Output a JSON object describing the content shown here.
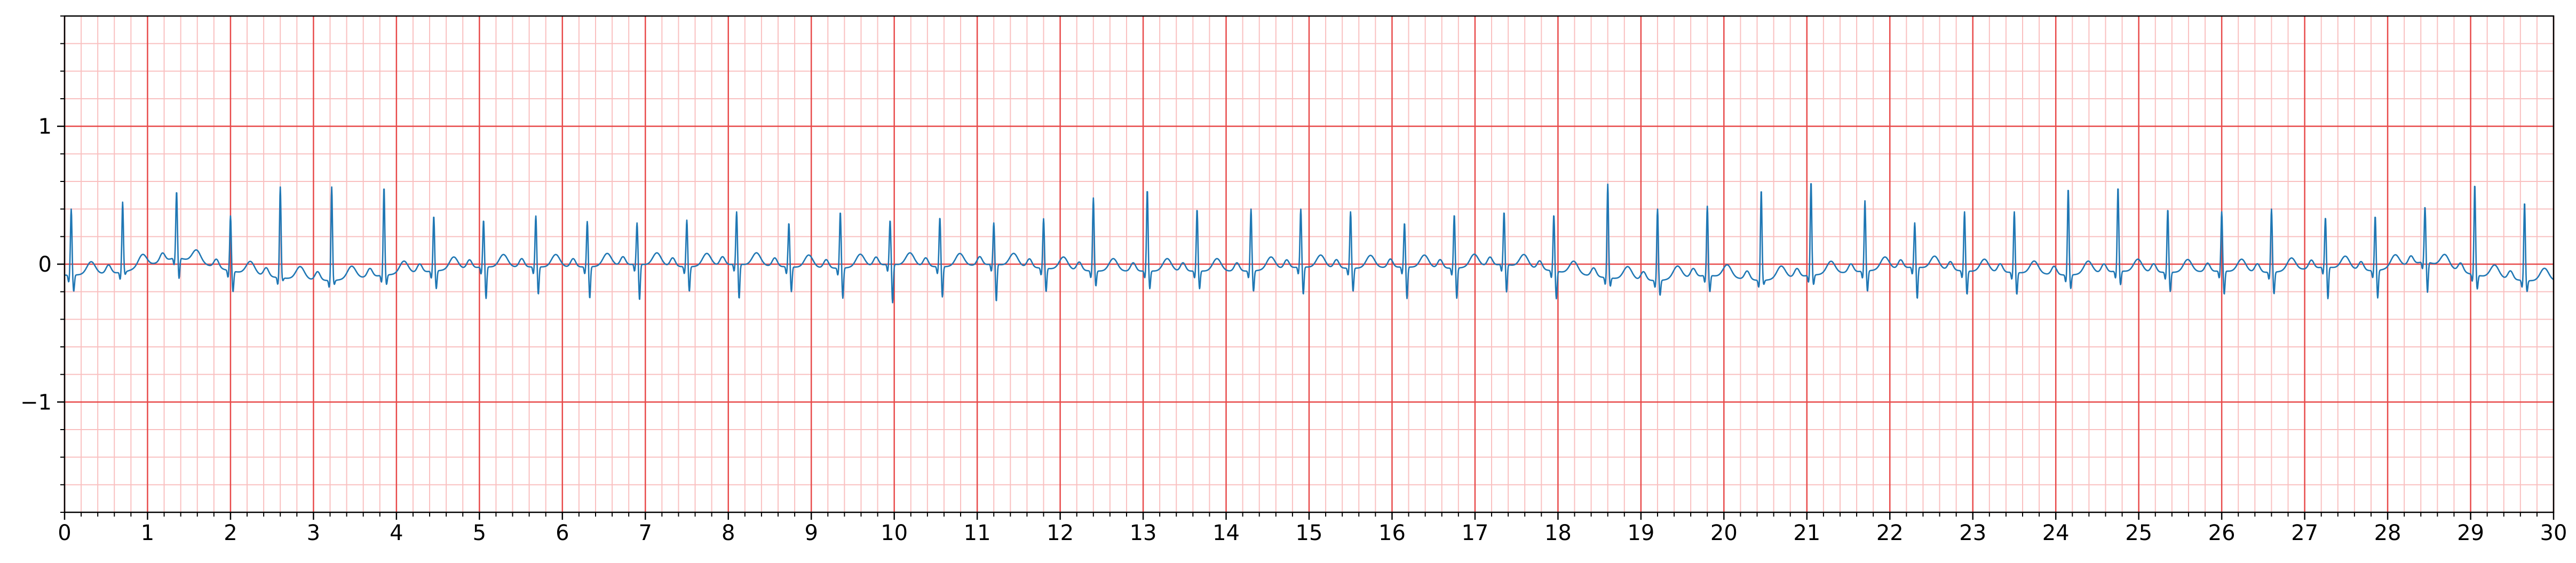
{
  "chart_data": {
    "type": "line",
    "title": "",
    "xlabel": "",
    "ylabel": "",
    "xlim": [
      0,
      30
    ],
    "ylim": [
      -1.8,
      1.8
    ],
    "x_ticks": [
      "0",
      "1",
      "2",
      "3",
      "4",
      "5",
      "6",
      "7",
      "8",
      "9",
      "10",
      "11",
      "12",
      "13",
      "14",
      "15",
      "16",
      "17",
      "18",
      "19",
      "20",
      "21",
      "22",
      "23",
      "24",
      "25",
      "26",
      "27",
      "28",
      "29",
      "30"
    ],
    "y_ticks": [
      {
        "value": 1,
        "label": "1"
      },
      {
        "value": 0,
        "label": "0"
      },
      {
        "value": -1,
        "label": "−1"
      }
    ],
    "grid": {
      "major_x": 1,
      "minor_x": 0.2,
      "major_y": 1,
      "minor_y": 0.2
    },
    "colors": {
      "signal": "#1f77b4",
      "major_grid": "#e84a4a",
      "minor_grid": "#f9c0c0",
      "axis": "#000000"
    },
    "series": [
      {
        "beat_times": [
          0.08,
          0.7,
          1.35,
          2.0,
          2.6,
          3.22,
          3.85,
          4.45,
          5.05,
          5.68,
          6.3,
          6.9,
          7.5,
          8.1,
          8.73,
          9.35,
          9.95,
          10.55,
          11.2,
          11.8,
          12.4,
          13.05,
          13.65,
          14.3,
          14.9,
          15.5,
          16.15,
          16.75,
          17.35,
          17.95,
          18.6,
          19.2,
          19.8,
          20.45,
          21.05,
          21.7,
          22.3,
          22.9,
          23.5,
          24.15,
          24.75,
          25.35,
          26.0,
          26.6,
          27.25,
          27.85,
          28.45,
          29.05,
          29.65
        ],
        "r_peak": [
          0.4,
          0.45,
          0.53,
          0.35,
          0.56,
          0.56,
          0.56,
          0.35,
          0.32,
          0.35,
          0.31,
          0.3,
          0.32,
          0.38,
          0.3,
          0.38,
          0.32,
          0.34,
          0.3,
          0.33,
          0.48,
          0.54,
          0.4,
          0.4,
          0.4,
          0.38,
          0.3,
          0.36,
          0.38,
          0.36,
          0.58,
          0.4,
          0.42,
          0.54,
          0.6,
          0.46,
          0.3,
          0.38,
          0.38,
          0.55,
          0.56,
          0.4,
          0.38,
          0.4,
          0.34,
          0.35,
          0.42,
          0.58,
          0.45
        ],
        "s_trough": [
          -0.2,
          -0.08,
          -0.1,
          -0.2,
          -0.12,
          -0.15,
          -0.15,
          -0.18,
          -0.25,
          -0.22,
          -0.25,
          -0.26,
          -0.2,
          -0.25,
          -0.2,
          -0.25,
          -0.28,
          -0.24,
          -0.27,
          -0.2,
          -0.16,
          -0.18,
          -0.18,
          -0.2,
          -0.22,
          -0.2,
          -0.25,
          -0.25,
          -0.2,
          -0.25,
          -0.16,
          -0.23,
          -0.2,
          -0.15,
          -0.15,
          -0.2,
          -0.25,
          -0.22,
          -0.22,
          -0.18,
          -0.15,
          -0.2,
          -0.22,
          -0.22,
          -0.25,
          -0.25,
          -0.2,
          -0.18,
          -0.2
        ],
        "baseline": [
          -0.08,
          -0.06,
          0.05,
          -0.05,
          -0.1,
          -0.12,
          -0.08,
          -0.05,
          -0.02,
          -0.02,
          -0.02,
          0.0,
          -0.02,
          0.0,
          -0.02,
          -0.03,
          0.0,
          -0.02,
          0.0,
          -0.03,
          -0.05,
          -0.05,
          -0.05,
          -0.05,
          -0.02,
          -0.03,
          -0.02,
          -0.03,
          0.0,
          -0.05,
          -0.1,
          -0.12,
          -0.08,
          -0.12,
          -0.08,
          -0.05,
          -0.02,
          -0.05,
          -0.06,
          -0.08,
          -0.05,
          -0.06,
          -0.05,
          -0.06,
          -0.02,
          -0.05,
          0.02,
          -0.08,
          -0.12
        ]
      }
    ]
  }
}
